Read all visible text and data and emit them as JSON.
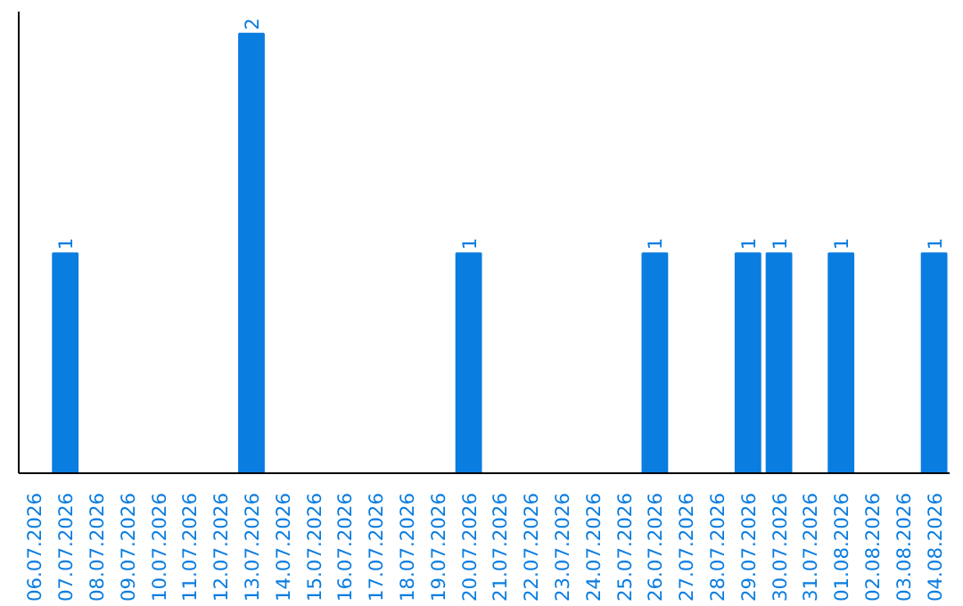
{
  "chart_data": {
    "type": "bar",
    "categories": [
      "06.07.2026",
      "07.07.2026",
      "08.07.2026",
      "09.07.2026",
      "10.07.2026",
      "11.07.2026",
      "12.07.2026",
      "13.07.2026",
      "14.07.2026",
      "15.07.2026",
      "16.07.2026",
      "17.07.2026",
      "18.07.2026",
      "19.07.2026",
      "20.07.2026",
      "21.07.2026",
      "22.07.2026",
      "23.07.2026",
      "24.07.2026",
      "25.07.2026",
      "26.07.2026",
      "27.07.2026",
      "28.07.2026",
      "29.07.2026",
      "30.07.2026",
      "31.07.2026",
      "01.08.2026",
      "02.08.2026",
      "03.08.2026",
      "04.08.2026"
    ],
    "values": [
      0,
      1,
      0,
      0,
      0,
      0,
      0,
      2,
      0,
      0,
      0,
      0,
      0,
      0,
      1,
      0,
      0,
      0,
      0,
      0,
      1,
      0,
      0,
      1,
      1,
      0,
      1,
      0,
      0,
      1
    ],
    "value_labels": [
      null,
      "1",
      null,
      null,
      null,
      null,
      null,
      "2",
      null,
      null,
      null,
      null,
      null,
      null,
      "1",
      null,
      null,
      null,
      null,
      null,
      "1",
      null,
      null,
      "1",
      "1",
      null,
      "1",
      null,
      null,
      "1"
    ],
    "color": "#0a7de0",
    "ylim": [
      0,
      2.1
    ],
    "tick_labels": "x",
    "grid": false
  }
}
